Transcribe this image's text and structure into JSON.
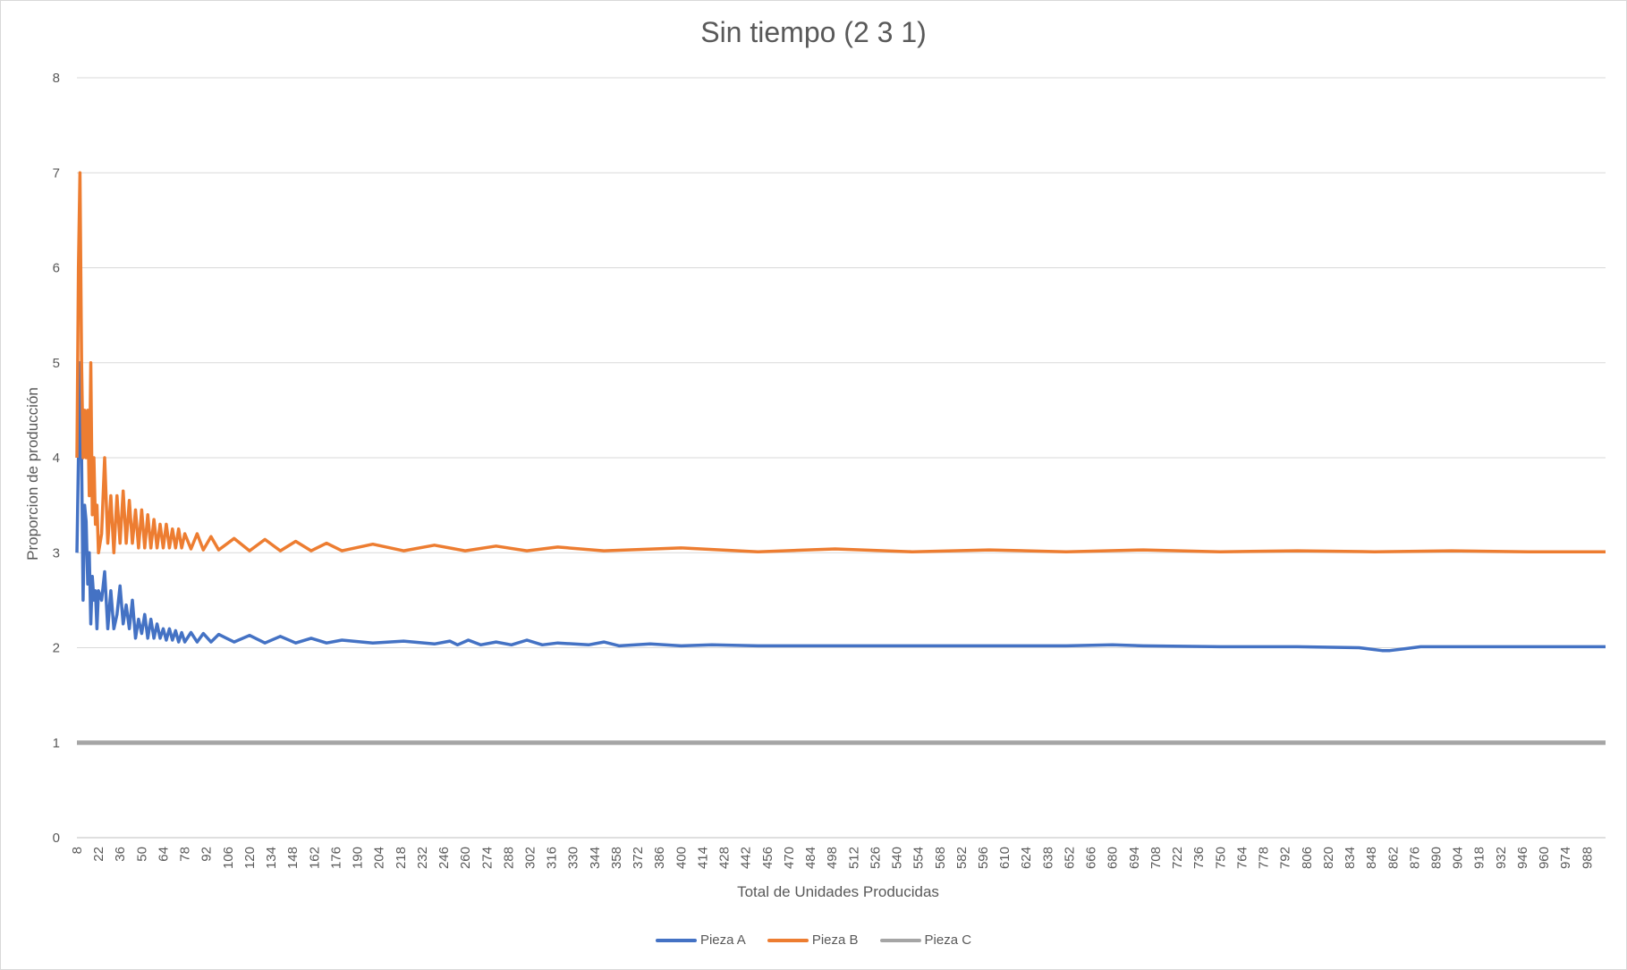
{
  "chart_data": {
    "type": "line",
    "title": "Sin tiempo (2 3 1)",
    "xlabel": "Total de Unidades Producidas",
    "ylabel": "Proporcion de producción",
    "ylim": [
      0,
      8
    ],
    "yticks": [
      "0",
      "1",
      "2",
      "3",
      "4",
      "5",
      "6",
      "7",
      "8"
    ],
    "xlim": [
      8,
      1000
    ],
    "xticks": [
      "8",
      "22",
      "36",
      "50",
      "64",
      "78",
      "92",
      "106",
      "120",
      "134",
      "148",
      "162",
      "176",
      "190",
      "204",
      "218",
      "232",
      "246",
      "260",
      "274",
      "288",
      "302",
      "316",
      "330",
      "344",
      "358",
      "372",
      "386",
      "400",
      "414",
      "428",
      "442",
      "456",
      "470",
      "484",
      "498",
      "512",
      "526",
      "540",
      "554",
      "568",
      "582",
      "596",
      "610",
      "624",
      "638",
      "652",
      "666",
      "680",
      "694",
      "708",
      "722",
      "736",
      "750",
      "764",
      "778",
      "792",
      "806",
      "820",
      "834",
      "848",
      "862",
      "876",
      "890",
      "904",
      "918",
      "932",
      "946",
      "960",
      "974",
      "988"
    ],
    "grid": true,
    "legend_position": "bottom",
    "series": [
      {
        "name": "Pieza A",
        "color": "#4472c4",
        "x": [
          8,
          9,
          10,
          11,
          12,
          13,
          14,
          15,
          16,
          17,
          18,
          19,
          20,
          21,
          22,
          24,
          26,
          28,
          30,
          32,
          34,
          36,
          38,
          40,
          42,
          44,
          46,
          48,
          50,
          52,
          54,
          56,
          58,
          60,
          62,
          64,
          66,
          68,
          70,
          72,
          74,
          76,
          78,
          82,
          86,
          90,
          95,
          100,
          110,
          120,
          130,
          140,
          150,
          160,
          170,
          180,
          200,
          220,
          240,
          250,
          255,
          262,
          270,
          280,
          290,
          300,
          310,
          320,
          340,
          350,
          360,
          380,
          400,
          420,
          450,
          500,
          550,
          600,
          650,
          680,
          700,
          750,
          800,
          840,
          855,
          860,
          870,
          880,
          900,
          950,
          1000
        ],
        "y": [
          3.0,
          4.0,
          5.0,
          4.0,
          2.5,
          3.5,
          3.33,
          2.67,
          3.0,
          2.25,
          2.75,
          2.5,
          2.6,
          2.2,
          2.6,
          2.5,
          2.8,
          2.2,
          2.6,
          2.2,
          2.35,
          2.65,
          2.25,
          2.45,
          2.2,
          2.5,
          2.1,
          2.3,
          2.15,
          2.35,
          2.1,
          2.3,
          2.1,
          2.25,
          2.1,
          2.2,
          2.08,
          2.2,
          2.08,
          2.18,
          2.06,
          2.16,
          2.06,
          2.16,
          2.06,
          2.15,
          2.06,
          2.14,
          2.06,
          2.13,
          2.05,
          2.12,
          2.05,
          2.1,
          2.05,
          2.08,
          2.05,
          2.07,
          2.04,
          2.07,
          2.03,
          2.08,
          2.03,
          2.06,
          2.03,
          2.08,
          2.03,
          2.05,
          2.03,
          2.06,
          2.02,
          2.04,
          2.02,
          2.03,
          2.02,
          2.02,
          2.02,
          2.02,
          2.02,
          2.03,
          2.02,
          2.01,
          2.01,
          2.0,
          1.97,
          1.97,
          1.99,
          2.01,
          2.01,
          2.01,
          2.01
        ]
      },
      {
        "name": "Pieza B",
        "color": "#ed7d31",
        "x": [
          8,
          9,
          10,
          11,
          12,
          13,
          14,
          15,
          16,
          17,
          18,
          19,
          20,
          21,
          22,
          24,
          26,
          28,
          30,
          32,
          34,
          36,
          38,
          40,
          42,
          44,
          46,
          48,
          50,
          52,
          54,
          56,
          58,
          60,
          62,
          64,
          66,
          68,
          70,
          72,
          74,
          76,
          78,
          82,
          86,
          90,
          95,
          100,
          110,
          120,
          130,
          140,
          150,
          160,
          170,
          180,
          200,
          220,
          240,
          260,
          280,
          300,
          320,
          350,
          400,
          450,
          500,
          550,
          600,
          650,
          700,
          750,
          800,
          850,
          900,
          950,
          1000
        ],
        "y": [
          4.0,
          6.0,
          7.0,
          5.0,
          4.0,
          4.5,
          4.0,
          4.5,
          3.6,
          5.0,
          3.4,
          4.0,
          3.3,
          3.5,
          3.0,
          3.2,
          4.0,
          3.1,
          3.6,
          3.0,
          3.6,
          3.1,
          3.65,
          3.1,
          3.55,
          3.1,
          3.45,
          3.05,
          3.45,
          3.05,
          3.4,
          3.05,
          3.35,
          3.05,
          3.3,
          3.05,
          3.3,
          3.05,
          3.25,
          3.05,
          3.25,
          3.05,
          3.2,
          3.04,
          3.2,
          3.03,
          3.17,
          3.03,
          3.15,
          3.02,
          3.14,
          3.02,
          3.12,
          3.02,
          3.1,
          3.02,
          3.09,
          3.02,
          3.08,
          3.02,
          3.07,
          3.02,
          3.06,
          3.02,
          3.05,
          3.01,
          3.04,
          3.01,
          3.03,
          3.01,
          3.03,
          3.01,
          3.02,
          3.01,
          3.02,
          3.01,
          3.01
        ]
      },
      {
        "name": "Pieza C",
        "color": "#a5a5a5",
        "x": [
          8,
          1000
        ],
        "y": [
          1,
          1
        ]
      }
    ]
  }
}
